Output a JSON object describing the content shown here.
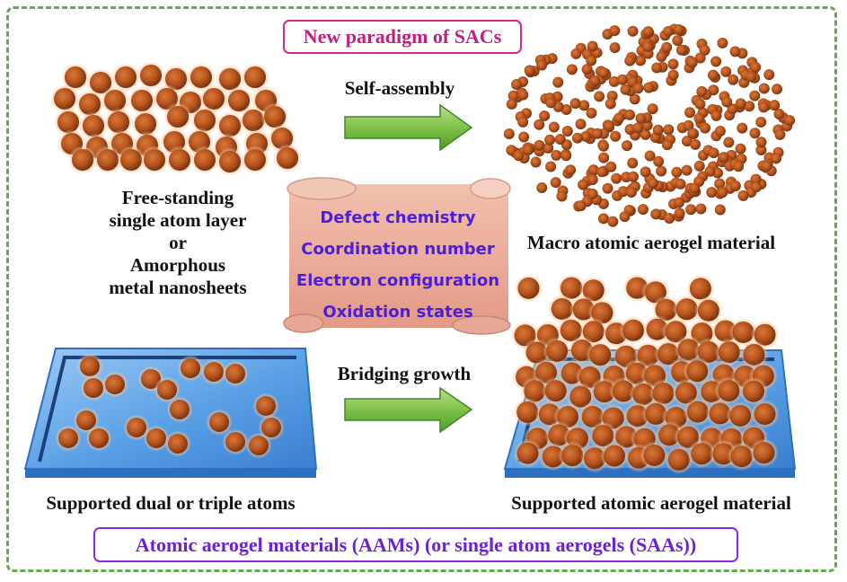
{
  "title": "New paradigm of SACs",
  "left_top_label": [
    "Free-standing",
    "single atom layer",
    "or",
    "Amorphous",
    "metal nanosheets"
  ],
  "arrow_top_label": "Self-assembly",
  "right_top_label": "Macro atomic aerogel material",
  "scroll_items": [
    "Defect chemistry",
    "Coordination number",
    "Electron configuration",
    "Oxidation states"
  ],
  "arrow_bottom_label": "Bridging growth",
  "left_bottom_label": "Supported dual or triple atoms",
  "right_bottom_label": "Supported atomic aerogel material",
  "footer": "Atomic aerogel materials (AAMs) (or single atom aerogels (SAAs))",
  "colors": {
    "atom": "#b8561f",
    "atom_glow": "#f0a060",
    "substrate": "#5aa0e6",
    "arrow": "#7fc14a",
    "scroll": "#e8a898",
    "title_border": "#d02a8e",
    "footer_border": "#8a2be2",
    "frame": "#66aa4a"
  }
}
